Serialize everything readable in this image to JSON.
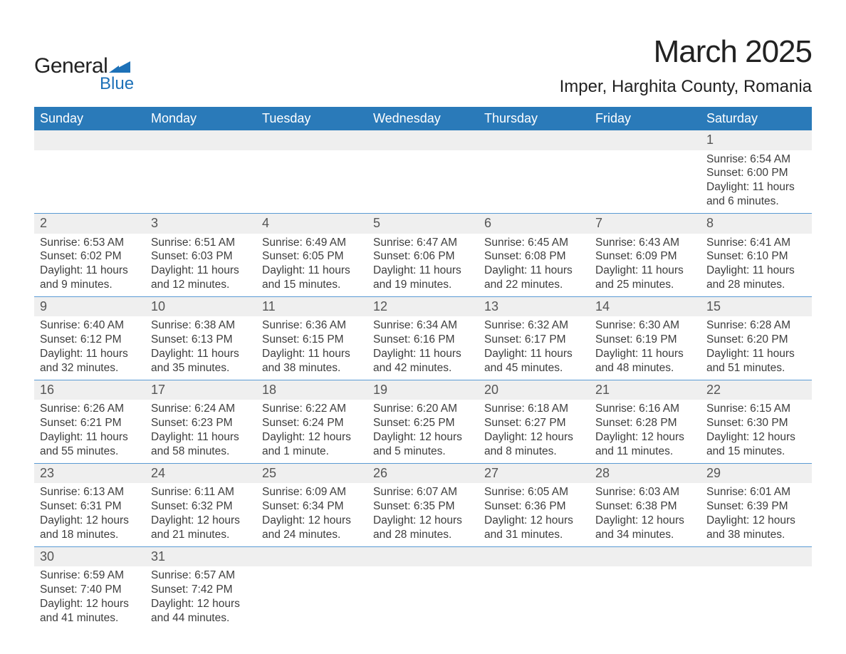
{
  "brand": {
    "name_main": "General",
    "name_sub": "Blue",
    "shape_color": "#1d71b8"
  },
  "title": {
    "month_year": "March 2025",
    "location": "Imper, Harghita County, Romania"
  },
  "colors": {
    "header_bg": "#2a7ab9",
    "header_text": "#ffffff",
    "daynum_bg": "#efefef",
    "daynum_text": "#555555",
    "body_text": "#3d3d3d",
    "row_border": "#5a9bd4",
    "page_bg": "#ffffff"
  },
  "weekdays": [
    "Sunday",
    "Monday",
    "Tuesday",
    "Wednesday",
    "Thursday",
    "Friday",
    "Saturday"
  ],
  "labels": {
    "sunrise": "Sunrise:",
    "sunset": "Sunset:",
    "daylight": "Daylight:"
  },
  "weeks": [
    [
      null,
      null,
      null,
      null,
      null,
      null,
      {
        "day": "1",
        "sunrise": "6:54 AM",
        "sunset": "6:00 PM",
        "daylight": "11 hours and 6 minutes."
      }
    ],
    [
      {
        "day": "2",
        "sunrise": "6:53 AM",
        "sunset": "6:02 PM",
        "daylight": "11 hours and 9 minutes."
      },
      {
        "day": "3",
        "sunrise": "6:51 AM",
        "sunset": "6:03 PM",
        "daylight": "11 hours and 12 minutes."
      },
      {
        "day": "4",
        "sunrise": "6:49 AM",
        "sunset": "6:05 PM",
        "daylight": "11 hours and 15 minutes."
      },
      {
        "day": "5",
        "sunrise": "6:47 AM",
        "sunset": "6:06 PM",
        "daylight": "11 hours and 19 minutes."
      },
      {
        "day": "6",
        "sunrise": "6:45 AM",
        "sunset": "6:08 PM",
        "daylight": "11 hours and 22 minutes."
      },
      {
        "day": "7",
        "sunrise": "6:43 AM",
        "sunset": "6:09 PM",
        "daylight": "11 hours and 25 minutes."
      },
      {
        "day": "8",
        "sunrise": "6:41 AM",
        "sunset": "6:10 PM",
        "daylight": "11 hours and 28 minutes."
      }
    ],
    [
      {
        "day": "9",
        "sunrise": "6:40 AM",
        "sunset": "6:12 PM",
        "daylight": "11 hours and 32 minutes."
      },
      {
        "day": "10",
        "sunrise": "6:38 AM",
        "sunset": "6:13 PM",
        "daylight": "11 hours and 35 minutes."
      },
      {
        "day": "11",
        "sunrise": "6:36 AM",
        "sunset": "6:15 PM",
        "daylight": "11 hours and 38 minutes."
      },
      {
        "day": "12",
        "sunrise": "6:34 AM",
        "sunset": "6:16 PM",
        "daylight": "11 hours and 42 minutes."
      },
      {
        "day": "13",
        "sunrise": "6:32 AM",
        "sunset": "6:17 PM",
        "daylight": "11 hours and 45 minutes."
      },
      {
        "day": "14",
        "sunrise": "6:30 AM",
        "sunset": "6:19 PM",
        "daylight": "11 hours and 48 minutes."
      },
      {
        "day": "15",
        "sunrise": "6:28 AM",
        "sunset": "6:20 PM",
        "daylight": "11 hours and 51 minutes."
      }
    ],
    [
      {
        "day": "16",
        "sunrise": "6:26 AM",
        "sunset": "6:21 PM",
        "daylight": "11 hours and 55 minutes."
      },
      {
        "day": "17",
        "sunrise": "6:24 AM",
        "sunset": "6:23 PM",
        "daylight": "11 hours and 58 minutes."
      },
      {
        "day": "18",
        "sunrise": "6:22 AM",
        "sunset": "6:24 PM",
        "daylight": "12 hours and 1 minute."
      },
      {
        "day": "19",
        "sunrise": "6:20 AM",
        "sunset": "6:25 PM",
        "daylight": "12 hours and 5 minutes."
      },
      {
        "day": "20",
        "sunrise": "6:18 AM",
        "sunset": "6:27 PM",
        "daylight": "12 hours and 8 minutes."
      },
      {
        "day": "21",
        "sunrise": "6:16 AM",
        "sunset": "6:28 PM",
        "daylight": "12 hours and 11 minutes."
      },
      {
        "day": "22",
        "sunrise": "6:15 AM",
        "sunset": "6:30 PM",
        "daylight": "12 hours and 15 minutes."
      }
    ],
    [
      {
        "day": "23",
        "sunrise": "6:13 AM",
        "sunset": "6:31 PM",
        "daylight": "12 hours and 18 minutes."
      },
      {
        "day": "24",
        "sunrise": "6:11 AM",
        "sunset": "6:32 PM",
        "daylight": "12 hours and 21 minutes."
      },
      {
        "day": "25",
        "sunrise": "6:09 AM",
        "sunset": "6:34 PM",
        "daylight": "12 hours and 24 minutes."
      },
      {
        "day": "26",
        "sunrise": "6:07 AM",
        "sunset": "6:35 PM",
        "daylight": "12 hours and 28 minutes."
      },
      {
        "day": "27",
        "sunrise": "6:05 AM",
        "sunset": "6:36 PM",
        "daylight": "12 hours and 31 minutes."
      },
      {
        "day": "28",
        "sunrise": "6:03 AM",
        "sunset": "6:38 PM",
        "daylight": "12 hours and 34 minutes."
      },
      {
        "day": "29",
        "sunrise": "6:01 AM",
        "sunset": "6:39 PM",
        "daylight": "12 hours and 38 minutes."
      }
    ],
    [
      {
        "day": "30",
        "sunrise": "6:59 AM",
        "sunset": "7:40 PM",
        "daylight": "12 hours and 41 minutes."
      },
      {
        "day": "31",
        "sunrise": "6:57 AM",
        "sunset": "7:42 PM",
        "daylight": "12 hours and 44 minutes."
      },
      null,
      null,
      null,
      null,
      null
    ]
  ]
}
